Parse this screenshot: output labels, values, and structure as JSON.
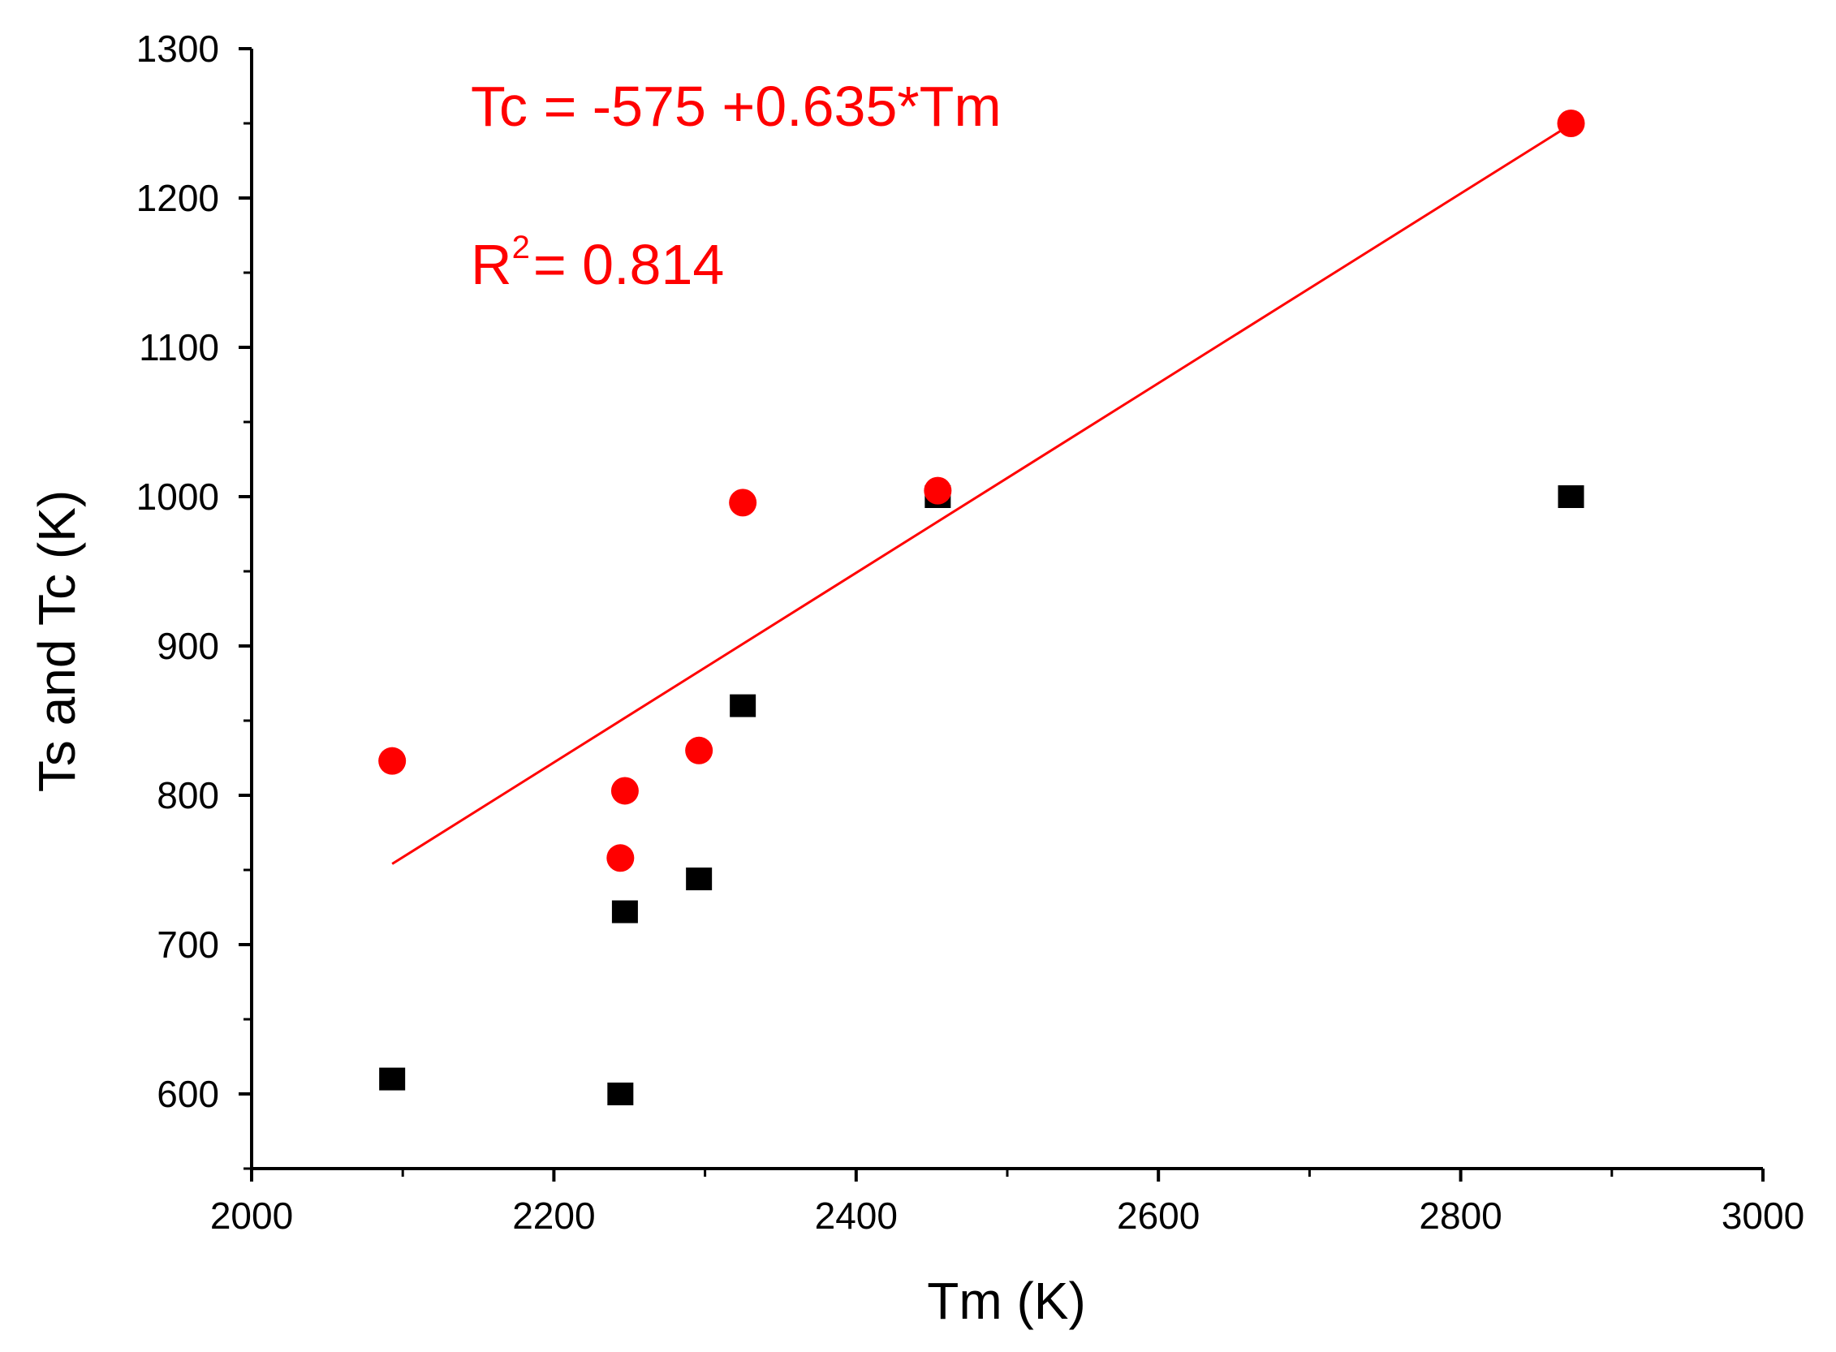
{
  "chart_data": {
    "type": "scatter",
    "xlabel": "Tm (K)",
    "ylabel": "Ts and Tc (K)",
    "xlim": [
      2000,
      3000
    ],
    "ylim": [
      550,
      1300
    ],
    "x_ticks": [
      2000,
      2200,
      2400,
      2600,
      2800,
      3000
    ],
    "y_ticks": [
      600,
      700,
      800,
      900,
      1000,
      1100,
      1200,
      1300
    ],
    "x_tick_labels": [
      "2000",
      "2200",
      "2400",
      "2600",
      "2800",
      "3000"
    ],
    "y_tick_labels": [
      "600",
      "700",
      "800",
      "900",
      "1000",
      "1100",
      "1200",
      "1300"
    ],
    "series": [
      {
        "name": "Ts",
        "marker": "square",
        "color": "#000000",
        "points": [
          {
            "x": 2093,
            "y": 610
          },
          {
            "x": 2244,
            "y": 600
          },
          {
            "x": 2247,
            "y": 722
          },
          {
            "x": 2296,
            "y": 744
          },
          {
            "x": 2325,
            "y": 860
          },
          {
            "x": 2454,
            "y": 1000
          },
          {
            "x": 2873,
            "y": 1000
          }
        ]
      },
      {
        "name": "Tc",
        "marker": "circle",
        "color": "#ff0000",
        "points": [
          {
            "x": 2093,
            "y": 823
          },
          {
            "x": 2244,
            "y": 758
          },
          {
            "x": 2247,
            "y": 803
          },
          {
            "x": 2296,
            "y": 830
          },
          {
            "x": 2325,
            "y": 996
          },
          {
            "x": 2454,
            "y": 1004
          },
          {
            "x": 2873,
            "y": 1250
          }
        ]
      }
    ],
    "fit": {
      "color": "#ff0000",
      "intercept": -575,
      "slope": 0.635,
      "x_range": [
        2093,
        2873
      ]
    },
    "annotations": {
      "equation": "Tc = -575 +0.635*Tm",
      "r2_base": "R",
      "r2_sup": "2",
      "r2_rest": "= 0.814"
    }
  }
}
